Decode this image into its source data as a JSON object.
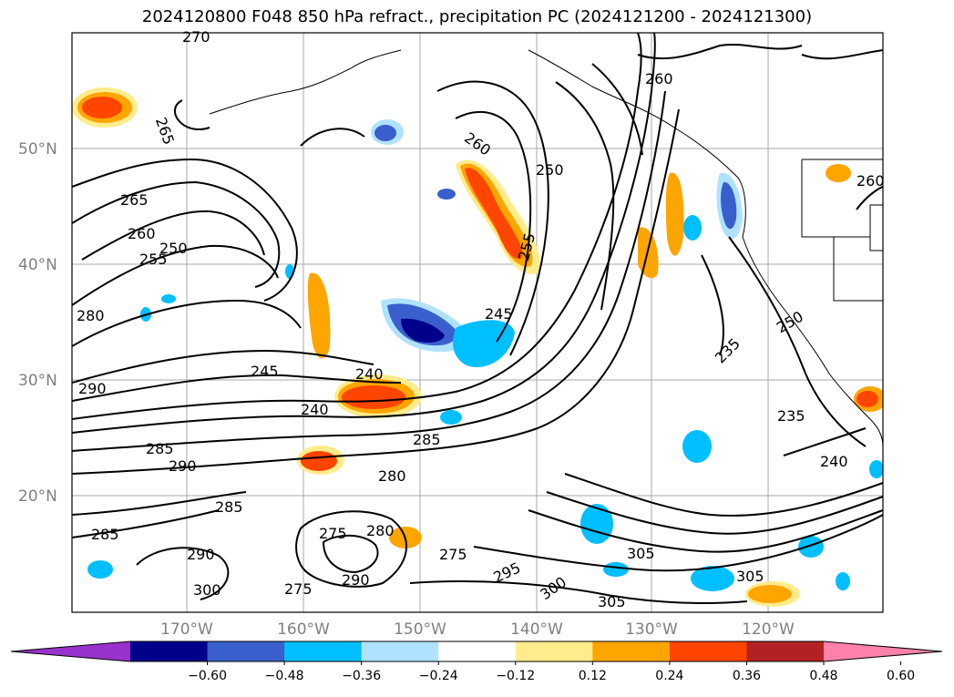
{
  "title": "2024120800 F048 850 hPa refract., precipitation PC (2024121200 - 2024121300)",
  "map": {
    "lat_labels": [
      "50°N",
      "40°N",
      "30°N",
      "20°N"
    ],
    "lon_labels": [
      "170°W",
      "160°W",
      "150°W",
      "140°W",
      "130°W",
      "120°W"
    ],
    "contour_labels": [
      "270",
      "265",
      "260",
      "255",
      "250",
      "245",
      "240",
      "235",
      "275",
      "280",
      "285",
      "290",
      "295",
      "300",
      "305"
    ],
    "grid": true
  },
  "colorbar": {
    "ticks": [
      "−0.60",
      "−0.48",
      "−0.36",
      "−0.24",
      "−0.12",
      "0.12",
      "0.24",
      "0.36",
      "0.48",
      "0.60"
    ],
    "colors": [
      "#9932cc",
      "#00008b",
      "#3a5fcd",
      "#00bfff",
      "#b0e2ff",
      "#ffffff",
      "#ffec8b",
      "#ffa500",
      "#ff4500",
      "#b22222",
      "#ff82ab"
    ],
    "extend": "both"
  }
}
